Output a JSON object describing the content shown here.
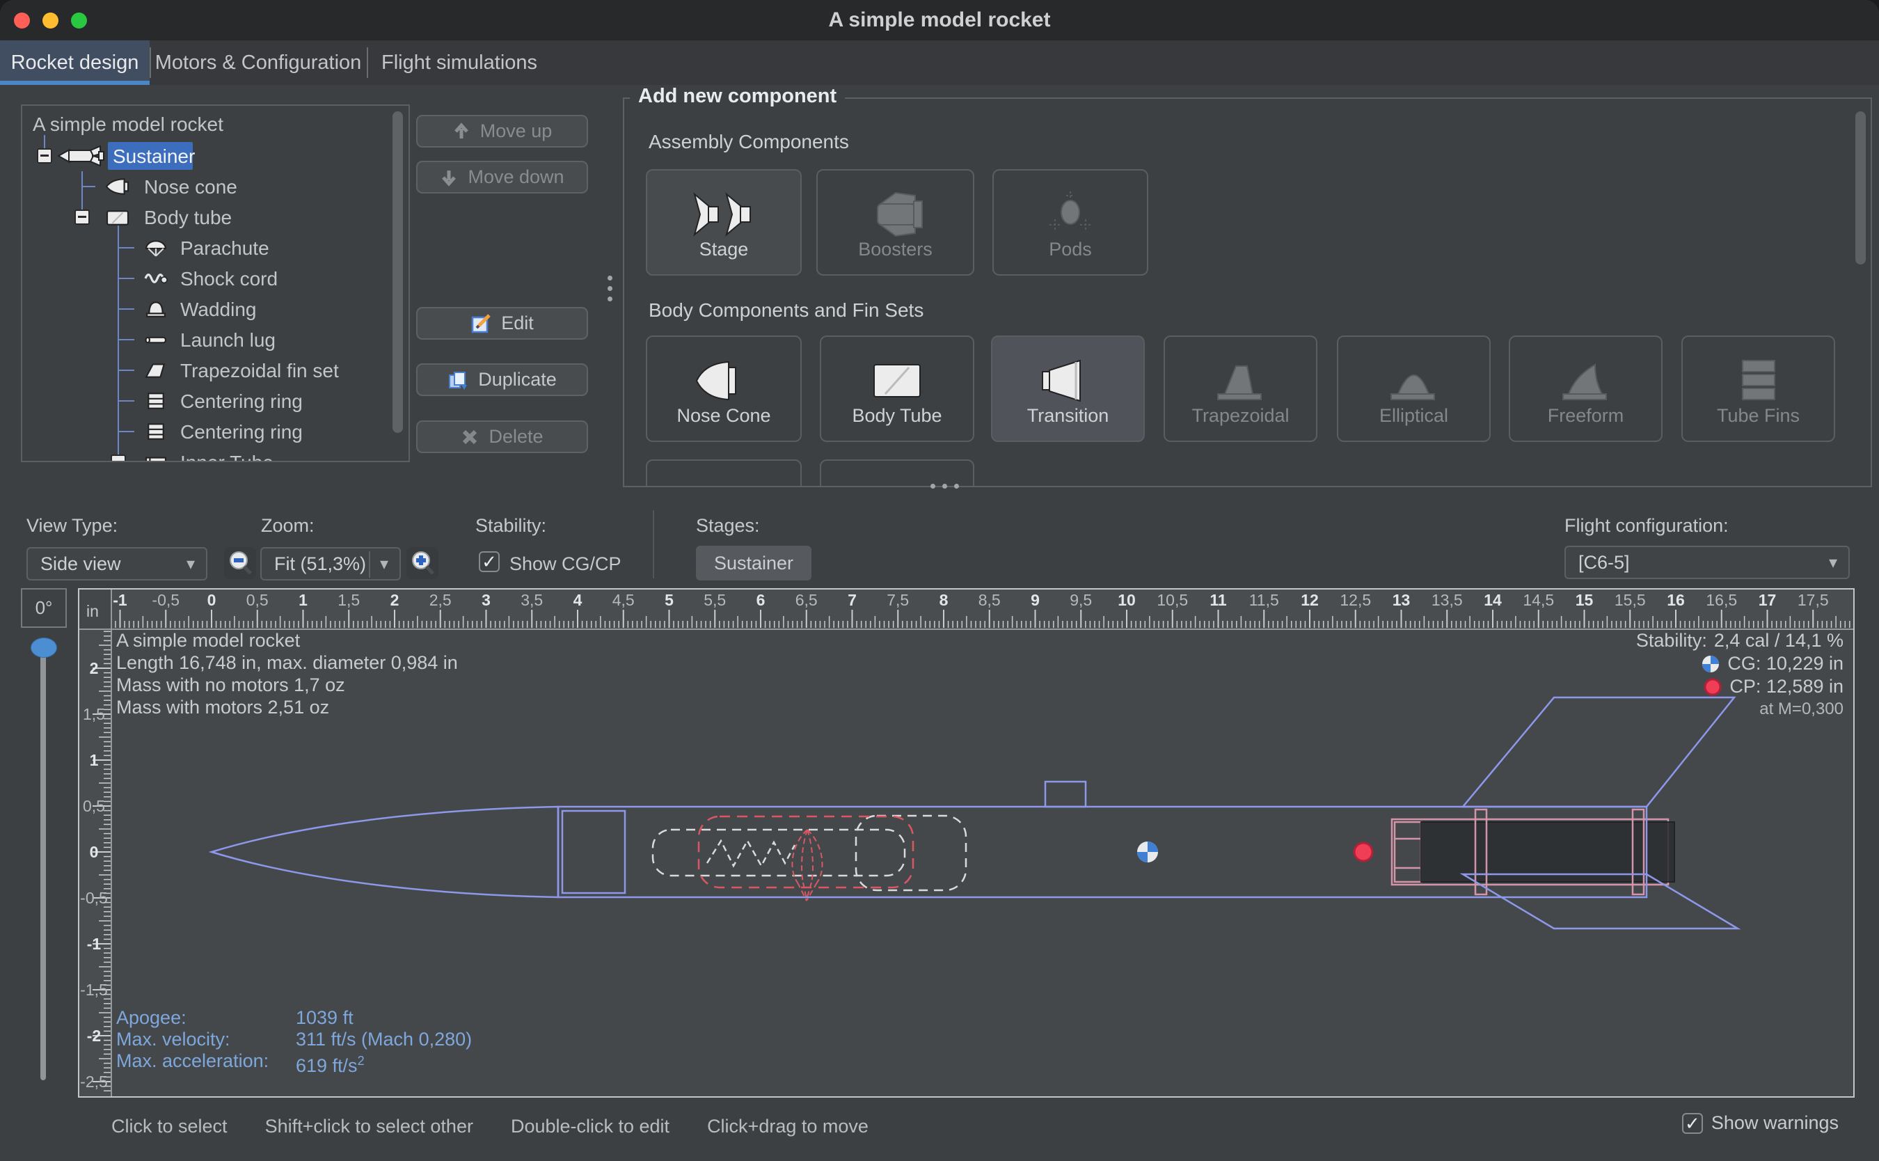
{
  "window": {
    "title": "A simple model rocket"
  },
  "tabs": [
    {
      "label": "Rocket design"
    },
    {
      "label": "Motors & Configuration"
    },
    {
      "label": "Flight simulations"
    }
  ],
  "tree": {
    "root": "A simple model rocket",
    "items": [
      {
        "label": "Sustainer",
        "selected": true
      },
      {
        "label": "Nose cone"
      },
      {
        "label": "Body tube"
      },
      {
        "label": "Parachute"
      },
      {
        "label": "Shock cord"
      },
      {
        "label": "Wadding"
      },
      {
        "label": "Launch lug"
      },
      {
        "label": "Trapezoidal fin set"
      },
      {
        "label": "Centering ring"
      },
      {
        "label": "Centering ring"
      },
      {
        "label": "Inner Tube"
      }
    ]
  },
  "actions": {
    "move_up": "Move up",
    "move_down": "Move down",
    "edit": "Edit",
    "duplicate": "Duplicate",
    "delete": "Delete"
  },
  "palette": {
    "title": "Add new component",
    "sections": [
      {
        "label": "Assembly Components",
        "buttons": [
          {
            "label": "Stage",
            "enabled": true
          },
          {
            "label": "Boosters",
            "enabled": false
          },
          {
            "label": "Pods",
            "enabled": false
          }
        ]
      },
      {
        "label": "Body Components and Fin Sets",
        "buttons": [
          {
            "label": "Nose Cone",
            "enabled": true
          },
          {
            "label": "Body Tube",
            "enabled": true
          },
          {
            "label": "Transition",
            "enabled": true
          },
          {
            "label": "Trapezoidal",
            "enabled": false
          },
          {
            "label": "Elliptical",
            "enabled": false
          },
          {
            "label": "Freeform",
            "enabled": false
          },
          {
            "label": "Tube Fins",
            "enabled": false
          }
        ]
      }
    ]
  },
  "toolbar": {
    "view_type_label": "View Type:",
    "view_type_value": "Side view",
    "zoom_label": "Zoom:",
    "zoom_value": "Fit (51,3%)",
    "stability_label": "Stability:",
    "show_cgcp_label": "Show CG/CP",
    "show_cgcp_checked": true,
    "stages_label": "Stages:",
    "stage_button": "Sustainer",
    "flight_config_label": "Flight configuration:",
    "flight_config_value": "[C6-5]"
  },
  "canvas": {
    "rotation": "0°",
    "unit": "in",
    "info_lines": {
      "l1": "A simple model rocket",
      "l2": "Length 16,748 in, max. diameter 0,984 in",
      "l3": "Mass with no motors 1,7 oz",
      "l4": "Mass with motors 2,51 oz"
    },
    "stability_label": "Stability:",
    "stability_value": "2,4 cal / 14,1 %",
    "cg_text": "CG: 10,229 in",
    "cp_text": "CP: 12,589 in",
    "mach_note": "at M=0,300",
    "flight": {
      "apogee_label": "Apogee:",
      "apogee_value": "1039 ft",
      "velocity_label": "Max. velocity:",
      "velocity_value": "311 ft/s  (Mach 0,280)",
      "accel_label": "Max. acceleration:",
      "accel_value": "619 ft/s",
      "accel_sup": "2"
    },
    "ruler": {
      "h_min": -1,
      "h_max": 17.5,
      "v_min": -2.5,
      "v_max": 2.5,
      "label_step": 0.5
    }
  },
  "statusbar": {
    "hint1": "Click to select",
    "hint2": "Shift+click to select other",
    "hint3": "Double-click to edit",
    "hint4": "Click+drag to move",
    "show_warnings": "Show warnings",
    "show_warnings_checked": true
  },
  "colors": {
    "accent_tab_underline": "#4d86c4",
    "tree_selection": "#3d6ebd",
    "rocket_outline": "#8d98ea",
    "motor_mount_pink": "#d494aa",
    "parachute_red": "#d95763",
    "cg_blue": "#3f7fd4",
    "cp_red": "#f03e56",
    "flight_text_blue": "#7ea7dc"
  }
}
